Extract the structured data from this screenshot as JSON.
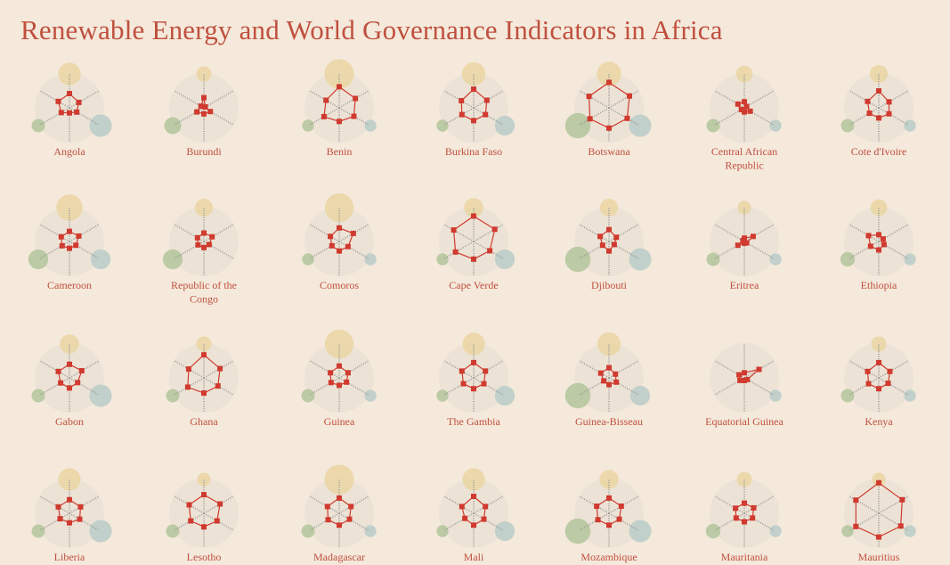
{
  "title": "Renewable Energy and World Governance Indicators in Africa",
  "colors": {
    "background": "#f4e9db",
    "disc": "#ece3d6",
    "spoke": "#999999",
    "polygon": "#d03a2f",
    "marker": "#d03a2f",
    "title": "#c0503f",
    "bubble_top": "#ebd6a5",
    "bubble_left": "#b6c79f",
    "bubble_right": "#bccdc9"
  },
  "chart_data": {
    "type": "radar-small-multiples",
    "axes_count": 6,
    "value_range": [
      0,
      1
    ],
    "bubbles": [
      "top",
      "lower-left",
      "lower-right"
    ],
    "countries": [
      {
        "name": "Angola",
        "values": [
          0.42,
          0.32,
          0.25,
          0.15,
          0.28,
          0.38
        ],
        "bubbles": [
          0.55,
          0.25,
          0.7
        ]
      },
      {
        "name": "Burundi",
        "values": [
          0.3,
          0.05,
          0.22,
          0.18,
          0.24,
          0.1
        ],
        "bubbles": [
          0.25,
          0.4,
          0.0
        ]
      },
      {
        "name": "Benin",
        "values": [
          0.62,
          0.55,
          0.5,
          0.4,
          0.52,
          0.45
        ],
        "bubbles": [
          0.95,
          0.2,
          0.2
        ]
      },
      {
        "name": "Burkina Faso",
        "values": [
          0.55,
          0.45,
          0.4,
          0.38,
          0.4,
          0.42
        ],
        "bubbles": [
          0.6,
          0.2,
          0.55
        ]
      },
      {
        "name": "Botswana",
        "values": [
          0.75,
          0.7,
          0.62,
          0.6,
          0.65,
          0.68
        ],
        "bubbles": [
          0.65,
          0.9,
          0.7
        ]
      },
      {
        "name": "Central African Republic",
        "values": [
          0.18,
          0.08,
          0.2,
          0.12,
          0.1,
          0.22
        ],
        "bubbles": [
          0.3,
          0.25,
          0.2
        ]
      },
      {
        "name": "Cote d'Ivoire",
        "values": [
          0.5,
          0.35,
          0.35,
          0.3,
          0.32,
          0.38
        ],
        "bubbles": [
          0.35,
          0.25,
          0.2
        ]
      },
      {
        "name": "Cameroon",
        "values": [
          0.3,
          0.32,
          0.22,
          0.2,
          0.25,
          0.28
        ],
        "bubbles": [
          0.75,
          0.55,
          0.55
        ]
      },
      {
        "name": "Republic of the Congo",
        "values": [
          0.25,
          0.28,
          0.18,
          0.18,
          0.2,
          0.22
        ],
        "bubbles": [
          0.35,
          0.55,
          0.0
        ]
      },
      {
        "name": "Comoros",
        "values": [
          0.4,
          0.48,
          0.3,
          0.28,
          0.25,
          0.3
        ],
        "bubbles": [
          0.9,
          0.2,
          0.2
        ]
      },
      {
        "name": "Cape Verde",
        "values": [
          0.75,
          0.72,
          0.55,
          0.52,
          0.62,
          0.68
        ],
        "bubbles": [
          0.4,
          0.2,
          0.55
        ]
      },
      {
        "name": "Djibouti",
        "values": [
          0.35,
          0.25,
          0.18,
          0.28,
          0.22,
          0.3
        ],
        "bubbles": [
          0.35,
          0.9,
          0.7
        ]
      },
      {
        "name": "Eritrea",
        "values": [
          0.1,
          0.3,
          0.08,
          0.05,
          0.22,
          0.05
        ],
        "bubbles": [
          0.2,
          0.25,
          0.2
        ]
      },
      {
        "name": "Ethiopia",
        "values": [
          0.2,
          0.15,
          0.18,
          0.25,
          0.28,
          0.35
        ],
        "bubbles": [
          0.3,
          0.3,
          0.2
        ]
      },
      {
        "name": "Gabon",
        "values": [
          0.4,
          0.42,
          0.28,
          0.3,
          0.3,
          0.38
        ],
        "bubbles": [
          0.4,
          0.25,
          0.7
        ]
      },
      {
        "name": "Ghana",
        "values": [
          0.68,
          0.55,
          0.48,
          0.45,
          0.55,
          0.52
        ],
        "bubbles": [
          0.25,
          0.25,
          0.0
        ]
      },
      {
        "name": "Guinea",
        "values": [
          0.35,
          0.3,
          0.25,
          0.22,
          0.28,
          0.3
        ],
        "bubbles": [
          0.9,
          0.25,
          0.2
        ]
      },
      {
        "name": "The Gambia",
        "values": [
          0.45,
          0.4,
          0.35,
          0.32,
          0.35,
          0.4
        ],
        "bubbles": [
          0.55,
          0.2,
          0.55
        ]
      },
      {
        "name": "Guinea-Bisseau",
        "values": [
          0.3,
          0.22,
          0.25,
          0.2,
          0.18,
          0.28
        ],
        "bubbles": [
          0.6,
          0.9,
          0.55
        ]
      },
      {
        "name": "Equatorial Guinea",
        "values": [
          0.15,
          0.5,
          0.1,
          0.08,
          0.15,
          0.18
        ],
        "bubbles": [
          0.0,
          0.0,
          0.2
        ]
      },
      {
        "name": "Kenya",
        "values": [
          0.45,
          0.38,
          0.32,
          0.32,
          0.35,
          0.38
        ],
        "bubbles": [
          0.25,
          0.25,
          0.2
        ]
      },
      {
        "name": "Liberia",
        "values": [
          0.4,
          0.38,
          0.35,
          0.28,
          0.32,
          0.38
        ],
        "bubbles": [
          0.55,
          0.25,
          0.7
        ]
      },
      {
        "name": "Lesotho",
        "values": [
          0.55,
          0.55,
          0.45,
          0.4,
          0.45,
          0.5
        ],
        "bubbles": [
          0.2,
          0.25,
          0.0
        ]
      },
      {
        "name": "Madagascar",
        "values": [
          0.45,
          0.4,
          0.35,
          0.35,
          0.38,
          0.4
        ],
        "bubbles": [
          0.95,
          0.25,
          0.2
        ]
      },
      {
        "name": "Mali",
        "values": [
          0.5,
          0.4,
          0.35,
          0.35,
          0.3,
          0.4
        ],
        "bubbles": [
          0.55,
          0.2,
          0.55
        ]
      },
      {
        "name": "Mozambique",
        "values": [
          0.45,
          0.42,
          0.35,
          0.35,
          0.38,
          0.42
        ],
        "bubbles": [
          0.4,
          0.9,
          0.7
        ]
      },
      {
        "name": "Mauritania",
        "values": [
          0.3,
          0.32,
          0.28,
          0.25,
          0.28,
          0.3
        ],
        "bubbles": [
          0.25,
          0.3,
          0.2
        ]
      },
      {
        "name": "Mauritius",
        "values": [
          0.9,
          0.8,
          0.75,
          0.7,
          0.78,
          0.78
        ],
        "bubbles": [
          0.2,
          0.2,
          0.2
        ]
      }
    ]
  }
}
